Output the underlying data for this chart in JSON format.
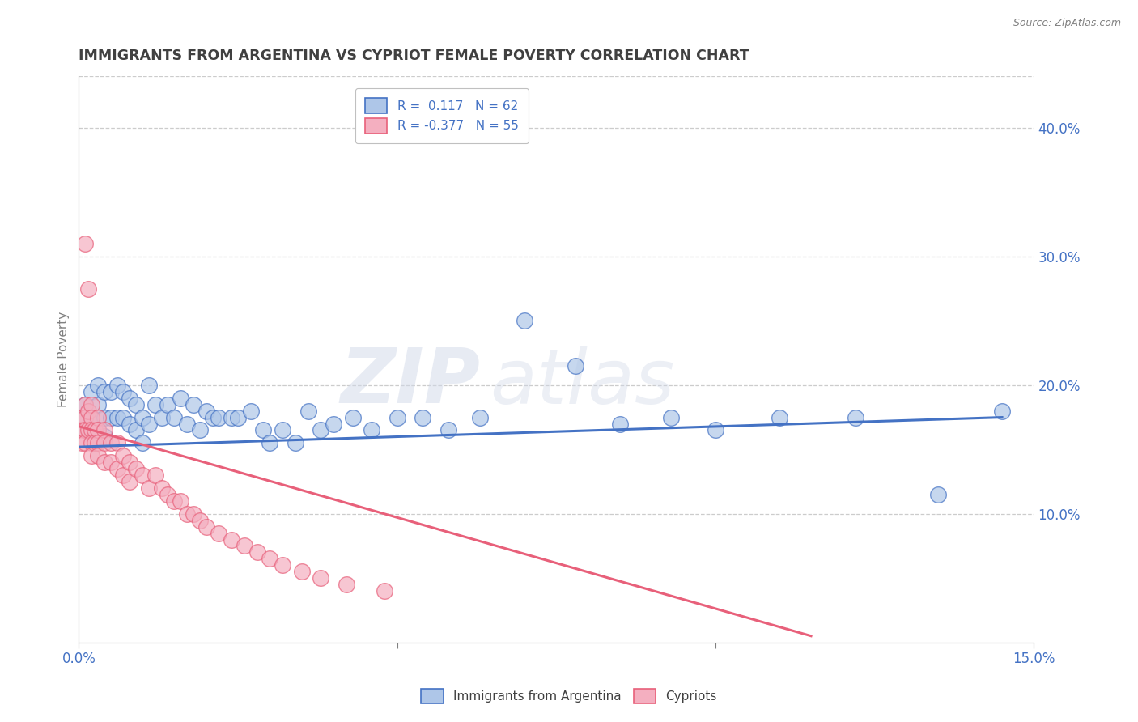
{
  "title": "IMMIGRANTS FROM ARGENTINA VS CYPRIOT FEMALE POVERTY CORRELATION CHART",
  "source": "Source: ZipAtlas.com",
  "ylabel": "Female Poverty",
  "xlim": [
    0.0,
    0.15
  ],
  "ylim": [
    0.0,
    0.44
  ],
  "xticks": [
    0.0,
    0.05,
    0.1,
    0.15
  ],
  "xtick_labels": [
    "0.0%",
    "",
    "",
    "15.0%"
  ],
  "ytick_labels_right": [
    "10.0%",
    "20.0%",
    "30.0%",
    "40.0%"
  ],
  "yticks_right": [
    0.1,
    0.2,
    0.3,
    0.4
  ],
  "blue_color": "#aec6e8",
  "pink_color": "#f4afc0",
  "blue_line_color": "#4472c4",
  "pink_line_color": "#e8607a",
  "title_color": "#404040",
  "axis_color": "#808080",
  "watermark": "ZIPatlas",
  "blue_scatter_x": [
    0.001,
    0.001,
    0.001,
    0.002,
    0.002,
    0.002,
    0.003,
    0.003,
    0.003,
    0.004,
    0.004,
    0.004,
    0.005,
    0.005,
    0.006,
    0.006,
    0.007,
    0.007,
    0.008,
    0.008,
    0.009,
    0.009,
    0.01,
    0.01,
    0.011,
    0.011,
    0.012,
    0.013,
    0.014,
    0.015,
    0.016,
    0.017,
    0.018,
    0.019,
    0.02,
    0.021,
    0.022,
    0.024,
    0.025,
    0.027,
    0.029,
    0.03,
    0.032,
    0.034,
    0.036,
    0.038,
    0.04,
    0.043,
    0.046,
    0.05,
    0.054,
    0.058,
    0.063,
    0.07,
    0.078,
    0.085,
    0.093,
    0.1,
    0.11,
    0.122,
    0.135,
    0.145
  ],
  "blue_scatter_y": [
    0.185,
    0.175,
    0.165,
    0.195,
    0.175,
    0.16,
    0.2,
    0.185,
    0.165,
    0.195,
    0.175,
    0.16,
    0.195,
    0.175,
    0.2,
    0.175,
    0.195,
    0.175,
    0.19,
    0.17,
    0.185,
    0.165,
    0.175,
    0.155,
    0.2,
    0.17,
    0.185,
    0.175,
    0.185,
    0.175,
    0.19,
    0.17,
    0.185,
    0.165,
    0.18,
    0.175,
    0.175,
    0.175,
    0.175,
    0.18,
    0.165,
    0.155,
    0.165,
    0.155,
    0.18,
    0.165,
    0.17,
    0.175,
    0.165,
    0.175,
    0.175,
    0.165,
    0.175,
    0.25,
    0.215,
    0.17,
    0.175,
    0.165,
    0.175,
    0.175,
    0.115,
    0.18
  ],
  "pink_scatter_x": [
    0.0005,
    0.0005,
    0.0005,
    0.001,
    0.001,
    0.001,
    0.001,
    0.001,
    0.0015,
    0.0015,
    0.0015,
    0.002,
    0.002,
    0.002,
    0.002,
    0.002,
    0.0025,
    0.0025,
    0.003,
    0.003,
    0.003,
    0.003,
    0.004,
    0.004,
    0.004,
    0.005,
    0.005,
    0.006,
    0.006,
    0.007,
    0.007,
    0.008,
    0.008,
    0.009,
    0.01,
    0.011,
    0.012,
    0.013,
    0.014,
    0.015,
    0.016,
    0.017,
    0.018,
    0.019,
    0.02,
    0.022,
    0.024,
    0.026,
    0.028,
    0.03,
    0.032,
    0.035,
    0.038,
    0.042,
    0.048
  ],
  "pink_scatter_y": [
    0.175,
    0.165,
    0.155,
    0.31,
    0.185,
    0.175,
    0.165,
    0.155,
    0.275,
    0.18,
    0.165,
    0.185,
    0.175,
    0.165,
    0.155,
    0.145,
    0.165,
    0.155,
    0.175,
    0.165,
    0.155,
    0.145,
    0.165,
    0.155,
    0.14,
    0.155,
    0.14,
    0.155,
    0.135,
    0.145,
    0.13,
    0.14,
    0.125,
    0.135,
    0.13,
    0.12,
    0.13,
    0.12,
    0.115,
    0.11,
    0.11,
    0.1,
    0.1,
    0.095,
    0.09,
    0.085,
    0.08,
    0.075,
    0.07,
    0.065,
    0.06,
    0.055,
    0.05,
    0.045,
    0.04
  ],
  "blue_trend_x": [
    0.0,
    0.145
  ],
  "blue_trend_y": [
    0.152,
    0.175
  ],
  "pink_trend_x": [
    0.0,
    0.115
  ],
  "pink_trend_y": [
    0.168,
    0.005
  ],
  "grid_color": "#cccccc",
  "background_color": "#ffffff",
  "legend_label_1": "R =  0.117   N = 62",
  "legend_label_2": "R = -0.377   N = 55"
}
